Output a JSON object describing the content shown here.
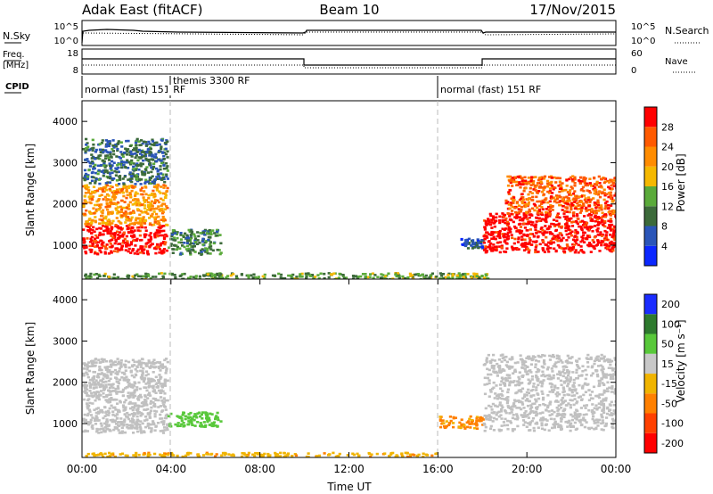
{
  "header": {
    "station": "Adak East (fitACF)",
    "beam": "Beam 10",
    "date": "17/Nov/2015"
  },
  "status_panels": {
    "nsky_label": "N.Sky",
    "nsearch_label": "N.Search",
    "freq_label_1": "Freq.",
    "freq_label_2": "[MHz]",
    "nave_label": "Nave",
    "cpid_label": "CPID",
    "noise_ticks_left": [
      "10^5",
      "10^0"
    ],
    "noise_ticks_right": [
      "10^5",
      "10^0"
    ],
    "freq_ticks": [
      "18",
      "8"
    ],
    "nave_ticks": [
      "60",
      "0"
    ]
  },
  "cpid_modes": [
    {
      "label": "normal (fast) 151 RF",
      "start": 0
    },
    {
      "label": "themis 3300 RF",
      "start": 4
    },
    {
      "label": "normal (fast) 151 RF",
      "start": 16
    }
  ],
  "colors": {
    "power_scale": [
      "#0b27ff",
      "#2a55b8",
      "#3c6a3a",
      "#5aaa3a",
      "#f5b800",
      "#ff8c00",
      "#ff5a00",
      "#ff0000"
    ],
    "velocity_scale": [
      "#1a2cff",
      "#2e7a2e",
      "#58c83a",
      "#c8c8c8",
      "#f0b400",
      "#ff8000",
      "#ff4000",
      "#ff0000"
    ],
    "ground_scatter": "#c0c0c0"
  },
  "chart_data": [
    {
      "type": "heatmap",
      "name": "power",
      "xlabel": "",
      "ylabel": "Slant Range [km]",
      "xlim": [
        0,
        24
      ],
      "ylim": [
        180,
        4500
      ],
      "yticks": [
        "1000",
        "2000",
        "3000",
        "4000"
      ],
      "colorbar": {
        "label": "Power [dB]",
        "ticks": [
          "4",
          "8",
          "12",
          "16",
          "20",
          "24",
          "28"
        ],
        "range": [
          0,
          30
        ]
      },
      "regions": [
        {
          "t0": 0.0,
          "t1": 3.8,
          "r0": 800,
          "r1": 1500,
          "value": 29
        },
        {
          "t0": 0.0,
          "t1": 3.8,
          "r0": 1500,
          "r1": 2500,
          "value": 20
        },
        {
          "t0": 0.0,
          "t1": 3.8,
          "r0": 2500,
          "r1": 3600,
          "value": 8
        },
        {
          "t0": 3.8,
          "t1": 6.2,
          "r0": 800,
          "r1": 1400,
          "value": 10
        },
        {
          "t0": 0.0,
          "t1": 16.0,
          "r0": 200,
          "r1": 350,
          "value": 12
        },
        {
          "t0": 16.0,
          "t1": 18.2,
          "r0": 200,
          "r1": 350,
          "value": 14
        },
        {
          "t0": 17.0,
          "t1": 18.0,
          "r0": 950,
          "r1": 1200,
          "value": 6
        },
        {
          "t0": 18.0,
          "t1": 24.0,
          "r0": 850,
          "r1": 1800,
          "value": 29
        },
        {
          "t0": 19.0,
          "t1": 24.0,
          "r0": 1800,
          "r1": 2700,
          "value": 24
        }
      ]
    },
    {
      "type": "heatmap",
      "name": "velocity",
      "xlabel": "Time UT",
      "ylabel": "Slant Range [km]",
      "xlim": [
        0,
        24
      ],
      "ylim": [
        180,
        4500
      ],
      "xticks": [
        "00:00",
        "04:00",
        "08:00",
        "12:00",
        "16:00",
        "20:00",
        "00:00"
      ],
      "yticks": [
        "1000",
        "2000",
        "3000",
        "4000"
      ],
      "colorbar": {
        "label": "Velocity [m s⁻¹]",
        "ticks": [
          "200",
          "100",
          "50",
          "15",
          "-15",
          "-50",
          "-100",
          "-200"
        ]
      },
      "regions": [
        {
          "t0": 0.0,
          "t1": 3.8,
          "r0": 800,
          "r1": 2600,
          "value": 0
        },
        {
          "t0": 3.8,
          "t1": 6.2,
          "r0": 950,
          "r1": 1300,
          "value": 60
        },
        {
          "t0": 0.0,
          "t1": 16.0,
          "r0": 220,
          "r1": 320,
          "value": -40
        },
        {
          "t0": 16.0,
          "t1": 18.0,
          "r0": 900,
          "r1": 1200,
          "value": -60
        },
        {
          "t0": 18.0,
          "t1": 24.0,
          "r0": 850,
          "r1": 2700,
          "value": 0
        }
      ]
    }
  ]
}
